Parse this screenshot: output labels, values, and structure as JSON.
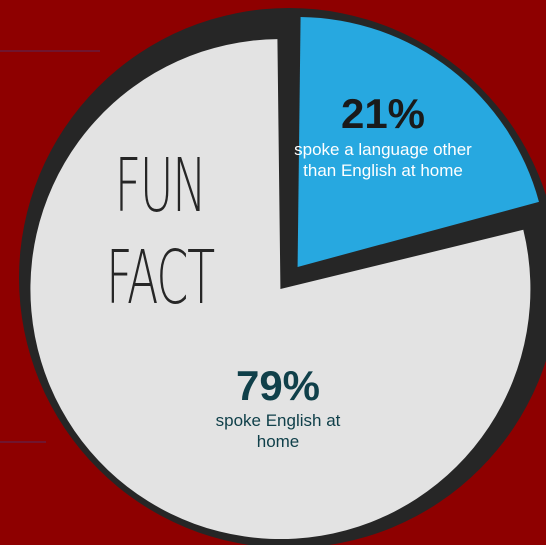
{
  "heading": {
    "line1": "FUN",
    "line2": "FACT"
  },
  "chart_data": {
    "type": "pie",
    "slices": [
      {
        "label": "spoke a language other than English at home",
        "value": 21,
        "value_label": "21%",
        "color": "#27a8e0"
      },
      {
        "label": "spoke English at home",
        "value": 79,
        "value_label": "79%",
        "color": "#e3e3e3"
      }
    ],
    "colors": {
      "outline": "#262626",
      "background": "#8e0000"
    }
  }
}
